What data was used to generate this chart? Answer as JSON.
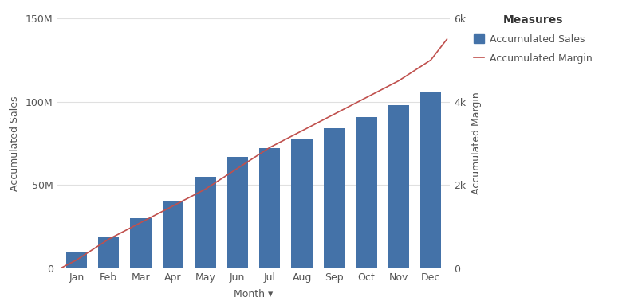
{
  "months": [
    "Jan",
    "Feb",
    "Mar",
    "Apr",
    "May",
    "Jun",
    "Jul",
    "Aug",
    "Sep",
    "Oct",
    "Nov",
    "Dec"
  ],
  "sales": [
    10000000,
    19000000,
    30000000,
    40000000,
    55000000,
    67000000,
    72000000,
    78000000,
    84000000,
    91000000,
    98000000,
    106000000
  ],
  "margin_x": [
    -0.5,
    0,
    1,
    2,
    3,
    4,
    5,
    6,
    7,
    8,
    9,
    10,
    11,
    11.5
  ],
  "margin_y": [
    0,
    200,
    700,
    1100,
    1500,
    1900,
    2400,
    2900,
    3300,
    3700,
    4100,
    4500,
    5000,
    5500
  ],
  "bar_color": "#4472a8",
  "line_color": "#c0504d",
  "left_ylabel": "Accumulated Sales",
  "right_ylabel": "Accumulated Margin",
  "xlabel": "Month",
  "xlabel_arrow": "▾",
  "legend_title": "Measures",
  "legend_bar_label": "Accumulated Sales",
  "legend_line_label": "Accumulated Margin",
  "left_ylim": [
    0,
    150000000
  ],
  "right_ylim": [
    0,
    6000
  ],
  "left_yticks": [
    0,
    50000000,
    100000000,
    150000000
  ],
  "left_yticklabels": [
    "0",
    "50M",
    "100M",
    "150M"
  ],
  "right_yticks": [
    0,
    2000,
    4000,
    6000
  ],
  "right_yticklabels": [
    "0",
    "2k",
    "4k",
    "6k"
  ],
  "background_color": "#ffffff",
  "grid_color": "#e0e0e0",
  "label_fontsize": 9,
  "tick_fontsize": 9,
  "legend_title_fontsize": 10,
  "legend_fontsize": 9
}
